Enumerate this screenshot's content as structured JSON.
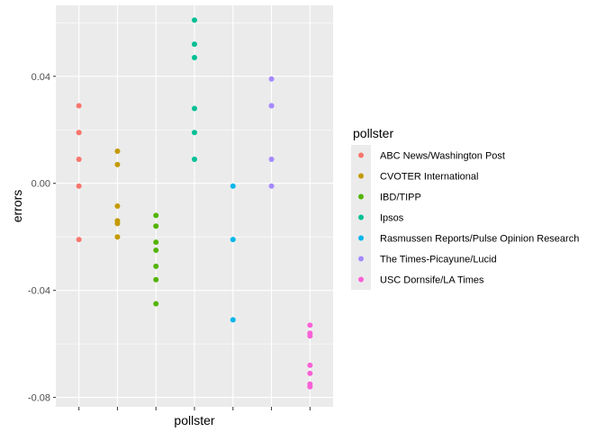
{
  "chart_data": {
    "type": "scatter",
    "xlabel": "pollster",
    "ylabel": "errors",
    "ylim": [
      -0.0835,
      0.0665
    ],
    "yticks": [
      -0.08,
      -0.04,
      0.0,
      0.04
    ],
    "ytick_labels": [
      "-0.08",
      "-0.04",
      "0.00",
      "0.04"
    ],
    "x_tick_labels_shown": false,
    "grid": true,
    "legend_position": "right",
    "legend_title": "pollster",
    "categories": [
      "ABC News/Washington Post",
      "CVOTER International",
      "IBD/TIPP",
      "Ipsos",
      "Rasmussen Reports/Pulse Opinion Research",
      "The Times-Picayune/Lucid",
      "USC Dornsife/LA Times"
    ],
    "series": [
      {
        "name": "ABC News/Washington Post",
        "color": "#F8766D",
        "values": [
          0.029,
          0.019,
          0.019,
          0.009,
          -0.001,
          -0.021
        ]
      },
      {
        "name": "CVOTER International",
        "color": "#C49A00",
        "values": [
          0.012,
          0.007,
          -0.0085,
          -0.014,
          -0.015,
          -0.02
        ]
      },
      {
        "name": "IBD/TIPP",
        "color": "#53B400",
        "values": [
          -0.012,
          -0.016,
          -0.022,
          -0.025,
          -0.031,
          -0.036,
          -0.045
        ]
      },
      {
        "name": "Ipsos",
        "color": "#00C094",
        "values": [
          0.061,
          0.052,
          0.047,
          0.028,
          0.019,
          0.009
        ]
      },
      {
        "name": "Rasmussen Reports/Pulse Opinion Research",
        "color": "#00B6EB",
        "values": [
          -0.001,
          -0.021,
          -0.051
        ]
      },
      {
        "name": "The Times-Picayune/Lucid",
        "color": "#A58AFF",
        "values": [
          0.039,
          0.029,
          0.029,
          0.009,
          -0.001
        ]
      },
      {
        "name": "USC Dornsife/LA Times",
        "color": "#FB61D7",
        "values": [
          -0.053,
          -0.056,
          -0.057,
          -0.068,
          -0.071,
          -0.075,
          -0.076
        ]
      }
    ]
  },
  "colors": {
    "panel_background": "#EBEBEB",
    "grid": "#FFFFFF",
    "tick_text": "#4D4D4D",
    "tick_mark": "#333333"
  }
}
